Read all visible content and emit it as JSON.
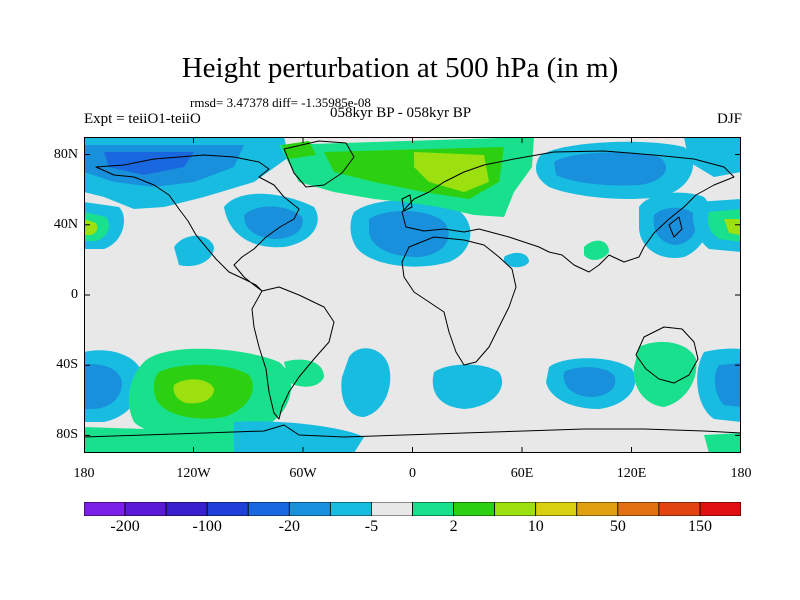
{
  "title": "Height perturbation at 500 hPa (in m)",
  "stats": "rmsd= 3.47378 diff= -1.35985e-08",
  "experiment": "Expt = teiiO1-teiiO",
  "period": "058kyr BP - 058kyr BP",
  "season": "DJF",
  "map": {
    "projection": "cylindrical-equidistant",
    "lon_range": [
      -180,
      180
    ],
    "lat_range": [
      -90,
      90
    ],
    "lat_ticks": [
      {
        "value": 80,
        "label": "80N"
      },
      {
        "value": 40,
        "label": "40N"
      },
      {
        "value": 0,
        "label": "0"
      },
      {
        "value": -40,
        "label": "40S"
      },
      {
        "value": -80,
        "label": "80S"
      }
    ],
    "lon_ticks": [
      {
        "value": -180,
        "label": "180"
      },
      {
        "value": -120,
        "label": "120W"
      },
      {
        "value": -60,
        "label": "60W"
      },
      {
        "value": 0,
        "label": "0"
      },
      {
        "value": 60,
        "label": "60E"
      },
      {
        "value": 120,
        "label": "120E"
      },
      {
        "value": 180,
        "label": "180"
      }
    ],
    "background_color": "#e8e8e8"
  },
  "colorbar": {
    "colors": [
      "#7a1fe6",
      "#5a1ad8",
      "#3a20cc",
      "#1e40d8",
      "#1a68e0",
      "#1890dc",
      "#18bce0",
      "#e8e8e8",
      "#18e08c",
      "#2cd010",
      "#9ce010",
      "#d8d010",
      "#e0a010",
      "#e07010",
      "#e04410",
      "#e01010"
    ],
    "labels": [
      {
        "index": 1,
        "text": "-200"
      },
      {
        "index": 3,
        "text": "-100"
      },
      {
        "index": 5,
        "text": "-20"
      },
      {
        "index": 7,
        "text": "-5"
      },
      {
        "index": 9,
        "text": "2"
      },
      {
        "index": 11,
        "text": "10"
      },
      {
        "index": 13,
        "text": "50"
      },
      {
        "index": 15,
        "text": "150"
      }
    ]
  }
}
